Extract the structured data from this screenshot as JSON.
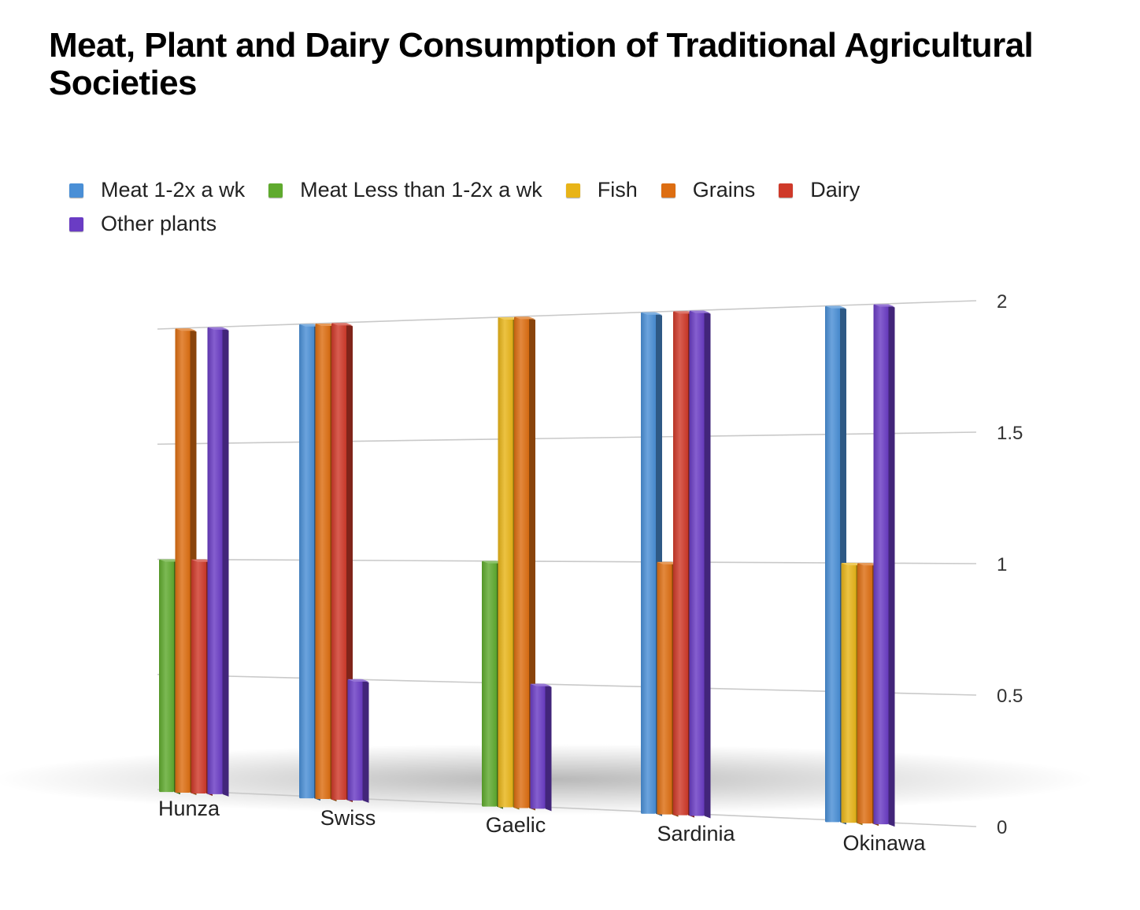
{
  "chart_data": {
    "type": "bar",
    "title": "Meat, Plant and Dairy Consumption of Traditional Agricultural Societies",
    "categories": [
      "Hunza",
      "Swiss",
      "Gaelic",
      "Sardinia",
      "Okinawa"
    ],
    "series": [
      {
        "name": "Meat 1-2x a wk",
        "color": "#4a8fd6",
        "values": [
          0,
          2,
          0,
          2,
          2
        ]
      },
      {
        "name": "Meat Less than 1-2x a wk",
        "color": "#5faa2e",
        "values": [
          1,
          0,
          1,
          0,
          0
        ]
      },
      {
        "name": "Fish",
        "color": "#e8b418",
        "values": [
          0,
          0,
          2,
          0,
          1
        ]
      },
      {
        "name": "Grains",
        "color": "#dd6e12",
        "values": [
          2,
          2,
          2,
          1,
          1
        ]
      },
      {
        "name": "Dairy",
        "color": "#cf3a2a",
        "values": [
          1,
          2,
          0,
          2,
          0
        ]
      },
      {
        "name": "Other plants",
        "color": "#6a3cc4",
        "values": [
          2,
          0.5,
          0.5,
          2,
          2
        ]
      }
    ],
    "ylim": [
      0,
      2
    ],
    "yticks": [
      "0",
      "0.5",
      "1",
      "1.5",
      "2"
    ],
    "ytick_values": [
      0,
      0.5,
      1,
      1.5,
      2
    ],
    "grid": true,
    "legend_position": "top-left",
    "y_axis_side": "right"
  }
}
